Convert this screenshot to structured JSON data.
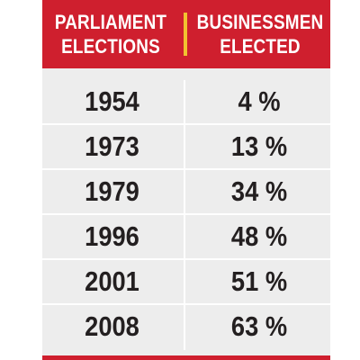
{
  "colors": {
    "header_bg": "#cf1f2e",
    "divider_accent": "#f2c230",
    "body_bg": "#ededed",
    "text": "#231f20"
  },
  "chart_data": {
    "type": "table",
    "columns": [
      {
        "line1": "PARLIAMENT",
        "line2": "ELECTIONS"
      },
      {
        "line1": "BUSINESSMEN",
        "line2": "ELECTED"
      }
    ],
    "rows": [
      {
        "year": "1954",
        "percent": "4 %"
      },
      {
        "year": "1973",
        "percent": "13 %"
      },
      {
        "year": "1979",
        "percent": "34 %"
      },
      {
        "year": "1996",
        "percent": "48 %"
      },
      {
        "year": "2001",
        "percent": "51 %"
      },
      {
        "year": "2008",
        "percent": "63 %"
      }
    ]
  }
}
